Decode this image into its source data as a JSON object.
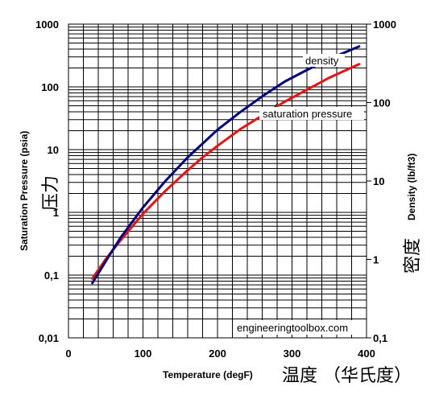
{
  "chart_data": {
    "type": "line",
    "x_axis": {
      "label": "Temperature (degF)",
      "label_cjk": "温度 （华氏度）",
      "min": 0,
      "max": 400,
      "ticks": [
        "0",
        "100",
        "200",
        "300",
        "400"
      ]
    },
    "y_left": {
      "label": "Saturation Pressure (psia)",
      "label_cjk": "压力",
      "scale": "log",
      "min": 0.01,
      "max": 1000,
      "ticks": [
        "0,01",
        "0,1",
        "1",
        "10",
        "100",
        "1000"
      ]
    },
    "y_right": {
      "label": "Density (lb/ft3)",
      "label_cjk": "密度",
      "scale": "log",
      "min": 0.1,
      "max": 1000,
      "ticks": [
        "0,1",
        "1",
        "10",
        "100",
        "1000"
      ]
    },
    "grid": true,
    "series": [
      {
        "name": "saturation pressure",
        "axis": "left",
        "color": "#e81010",
        "x": [
          32,
          50,
          70,
          100,
          130,
          160,
          180,
          200,
          230,
          260,
          290,
          320,
          350,
          390
        ],
        "y": [
          0.088,
          0.18,
          0.36,
          0.95,
          2.2,
          4.7,
          7.5,
          11.5,
          21,
          35,
          58,
          90,
          140,
          230
        ]
      },
      {
        "name": "density",
        "axis": "right",
        "color": "#000080",
        "x": [
          32,
          50,
          70,
          100,
          130,
          160,
          180,
          200,
          230,
          260,
          290,
          320,
          350,
          390
        ],
        "y": [
          0.5,
          0.95,
          1.9,
          4.6,
          10,
          20,
          30,
          45,
          75,
          120,
          185,
          260,
          360,
          520
        ]
      }
    ],
    "annotations": [
      "density",
      "saturation pressure"
    ],
    "watermark": "engineeringtoolbox.com"
  }
}
